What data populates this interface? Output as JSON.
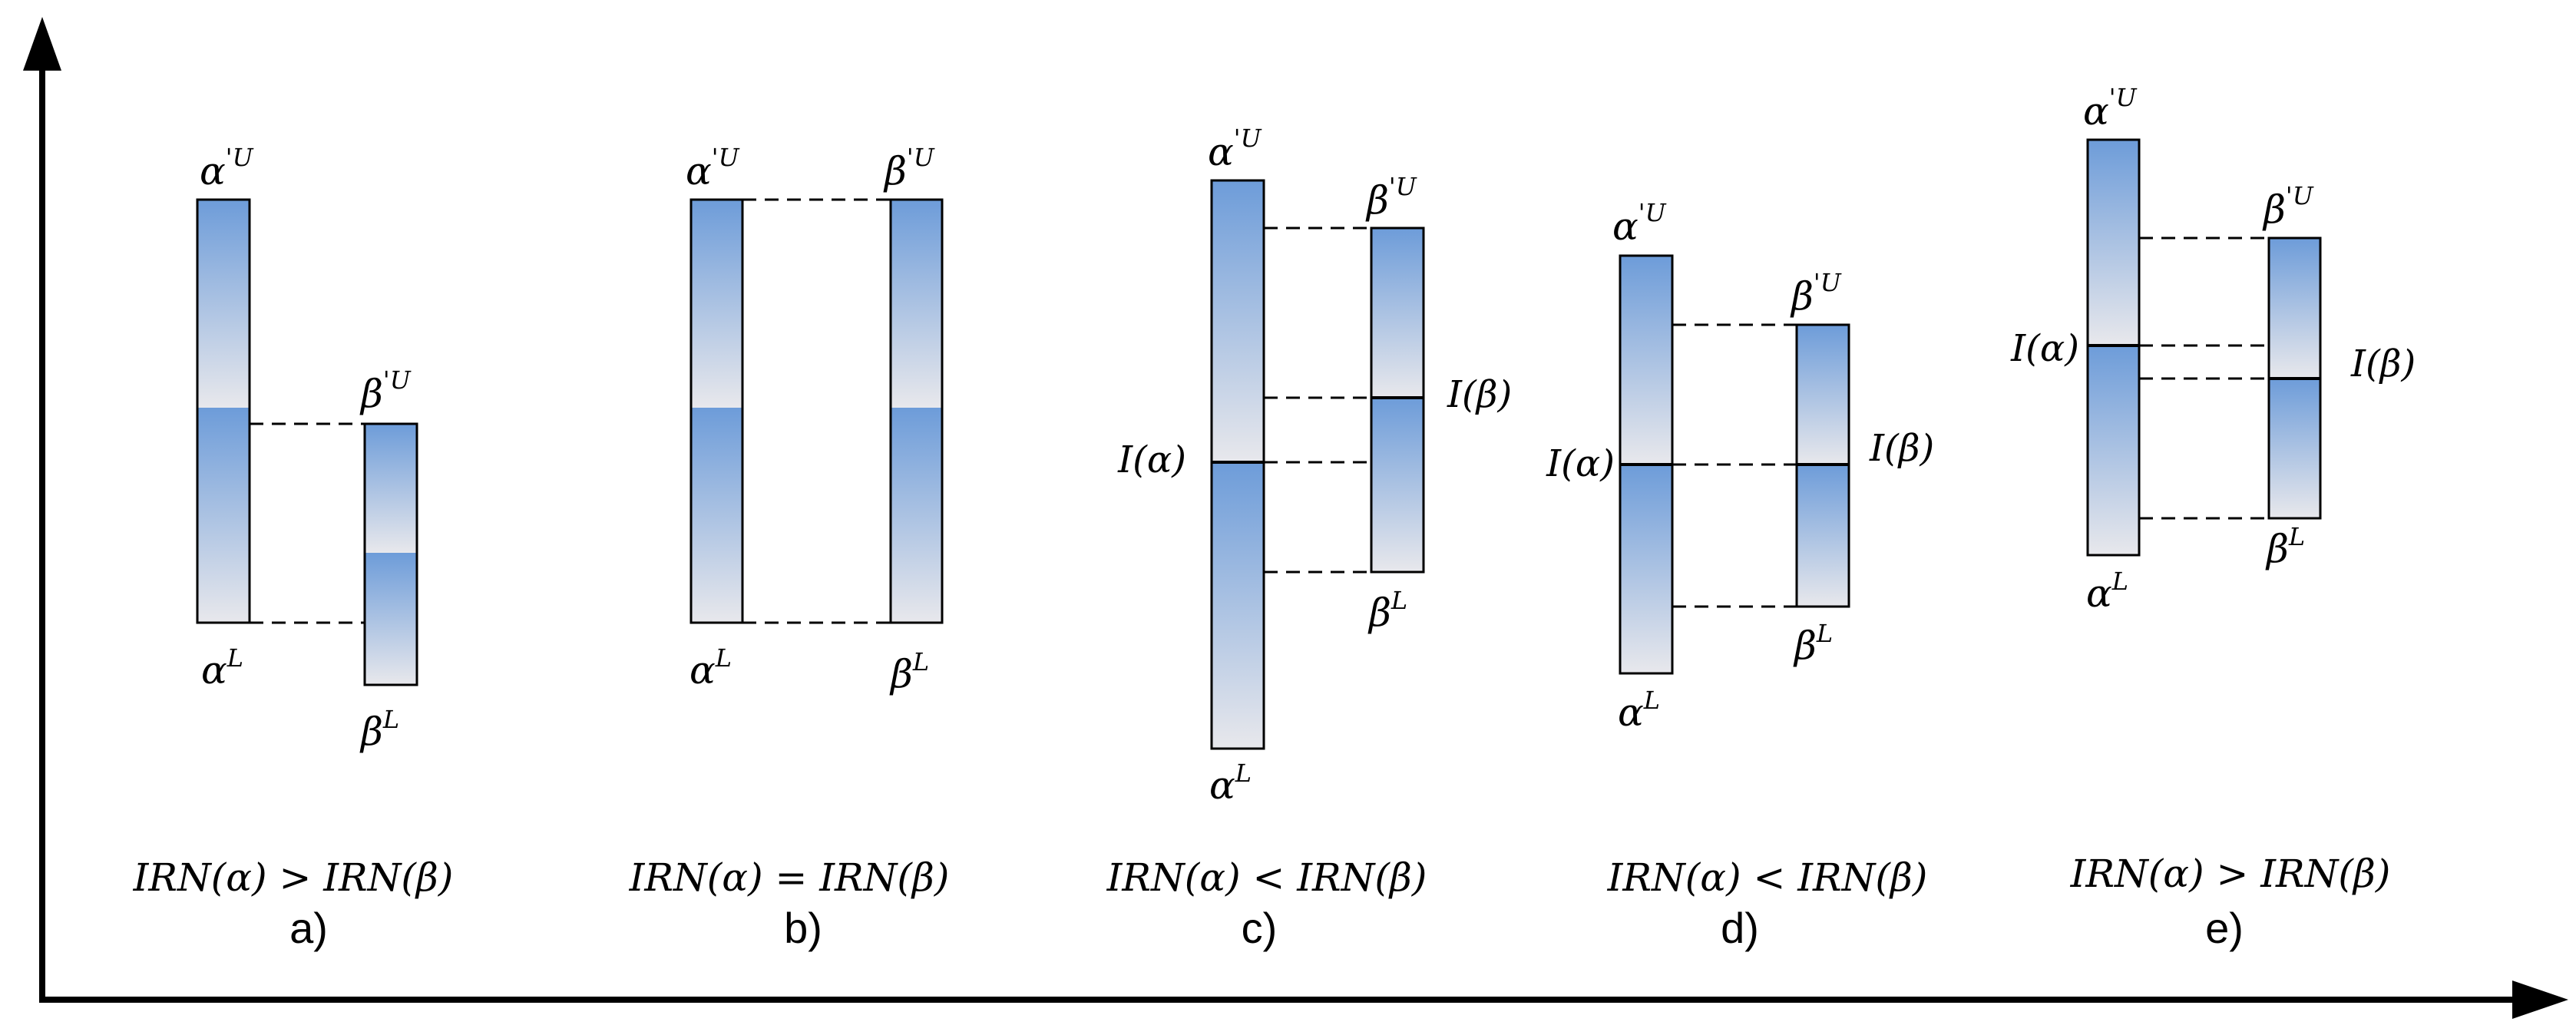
{
  "panels": [
    {
      "caption": "a)",
      "comparison": "IRN(α) > IRN(β)",
      "alpha": {
        "upper": "α",
        "upper_sup": "'U",
        "lower": "α",
        "lower_sup": "L",
        "midpoint": ""
      },
      "beta": {
        "upper": "β",
        "upper_sup": "'U",
        "lower": "β",
        "lower_sup": "L",
        "midpoint": ""
      }
    },
    {
      "caption": "b)",
      "comparison": "IRN(α) = IRN(β)",
      "alpha": {
        "upper": "α",
        "upper_sup": "'U",
        "lower": "α",
        "lower_sup": "L",
        "midpoint": ""
      },
      "beta": {
        "upper": "β",
        "upper_sup": "'U",
        "lower": "β",
        "lower_sup": "L",
        "midpoint": ""
      }
    },
    {
      "caption": "c)",
      "comparison": "IRN(α) < IRN(β)",
      "alpha": {
        "upper": "α",
        "upper_sup": "'U",
        "lower": "α",
        "lower_sup": "L",
        "midpoint": "I(α)"
      },
      "beta": {
        "upper": "β",
        "upper_sup": "'U",
        "lower": "β",
        "lower_sup": "L",
        "midpoint": "I(β)"
      }
    },
    {
      "caption": "d)",
      "comparison": "IRN(α) < IRN(β)",
      "alpha": {
        "upper": "α",
        "upper_sup": "'U",
        "lower": "α",
        "lower_sup": "L",
        "midpoint": "I(α)"
      },
      "beta": {
        "upper": "β",
        "upper_sup": "'U",
        "lower": "β",
        "lower_sup": "L",
        "midpoint": "I(β)"
      }
    },
    {
      "caption": "e)",
      "comparison": "IRN(α) > IRN(β)",
      "alpha": {
        "upper": "α",
        "upper_sup": "'U",
        "lower": "α",
        "lower_sup": "L",
        "midpoint": "I(α)"
      },
      "beta": {
        "upper": "β",
        "upper_sup": "'U",
        "lower": "β",
        "lower_sup": "L",
        "midpoint": "I(β)"
      }
    }
  ],
  "colors": {
    "bar_dark": "#6d9cd9",
    "bar_light": "#e8e8ec",
    "stroke": "#000000"
  }
}
